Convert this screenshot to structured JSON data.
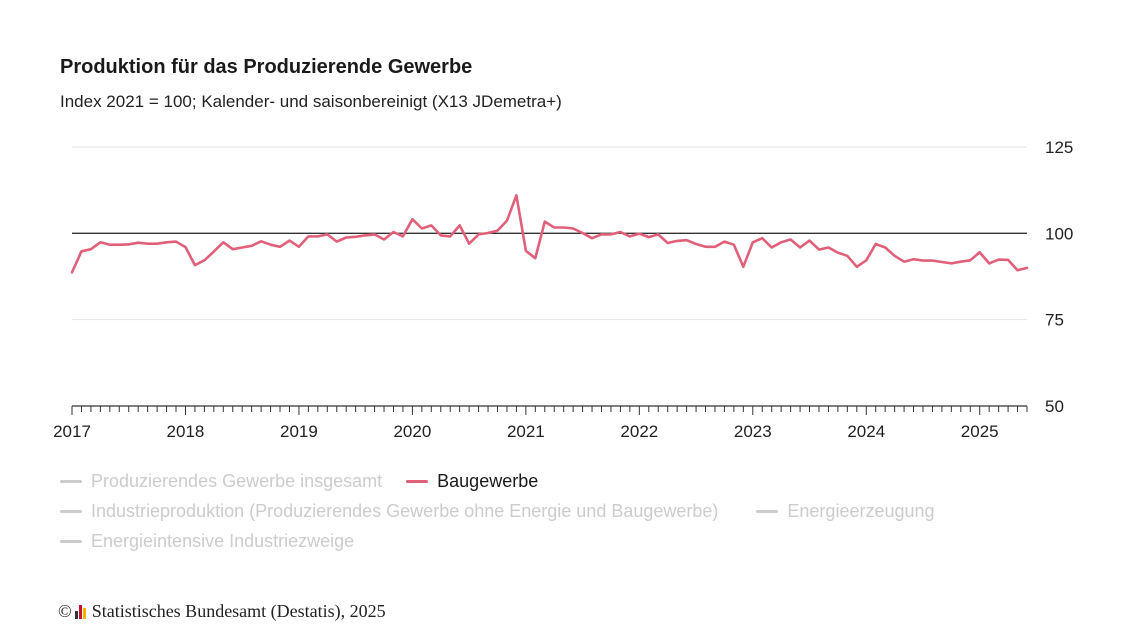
{
  "chart_data": {
    "type": "line",
    "title": "Produktion für das Produzierende Gewerbe",
    "subtitle": "Index 2021 = 100; Kalender- und saisonbereinigt (X13 JDemetra+)",
    "ylim": [
      50,
      125
    ],
    "y_ticks": [
      "125",
      "100",
      "75",
      "50"
    ],
    "y_tick_values": [
      125,
      100,
      75,
      50
    ],
    "reference_line": 100,
    "x_tick_labels": [
      "2017",
      "2018",
      "2019",
      "2020",
      "2021",
      "2022",
      "2023",
      "2024",
      "2025"
    ],
    "x_start": "2017-01",
    "x_end": "2025-06",
    "grid": "horizontal",
    "legend_position": "bottom",
    "series": [
      {
        "name": "Baugewerbe",
        "color": "#e0607a",
        "x": [
          "2017-01",
          "2017-02",
          "2017-03",
          "2017-04",
          "2017-05",
          "2017-06",
          "2017-07",
          "2017-08",
          "2017-09",
          "2017-10",
          "2017-11",
          "2017-12",
          "2018-01",
          "2018-02",
          "2018-03",
          "2018-04",
          "2018-05",
          "2018-06",
          "2018-07",
          "2018-08",
          "2018-09",
          "2018-10",
          "2018-11",
          "2018-12",
          "2019-01",
          "2019-02",
          "2019-03",
          "2019-04",
          "2019-05",
          "2019-06",
          "2019-07",
          "2019-08",
          "2019-09",
          "2019-10",
          "2019-11",
          "2019-12",
          "2020-01",
          "2020-02",
          "2020-03",
          "2020-04",
          "2020-05",
          "2020-06",
          "2020-07",
          "2020-08",
          "2020-09",
          "2020-10",
          "2020-11",
          "2020-12",
          "2021-01",
          "2021-02",
          "2021-03",
          "2021-04",
          "2021-05",
          "2021-06",
          "2021-07",
          "2021-08",
          "2021-09",
          "2021-10",
          "2021-11",
          "2021-12",
          "2022-01",
          "2022-02",
          "2022-03",
          "2022-04",
          "2022-05",
          "2022-06",
          "2022-07",
          "2022-08",
          "2022-09",
          "2022-10",
          "2022-11",
          "2022-12",
          "2023-01",
          "2023-02",
          "2023-03",
          "2023-04",
          "2023-05",
          "2023-06",
          "2023-07",
          "2023-08",
          "2023-09",
          "2023-10",
          "2023-11",
          "2023-12",
          "2024-01",
          "2024-02",
          "2024-03",
          "2024-04",
          "2024-05",
          "2024-06",
          "2024-07",
          "2024-08",
          "2024-09",
          "2024-10",
          "2024-11",
          "2024-12",
          "2025-01",
          "2025-02",
          "2025-03",
          "2025-04",
          "2025-05",
          "2025-06"
        ],
        "values": [
          88.7,
          94.8,
          95.4,
          97.4,
          96.7,
          96.7,
          96.8,
          97.3,
          97.0,
          97.0,
          97.4,
          97.6,
          96.0,
          90.8,
          92.2,
          94.7,
          97.4,
          95.4,
          95.9,
          96.4,
          97.7,
          96.7,
          96.1,
          97.9,
          96.1,
          99.1,
          99.1,
          99.7,
          97.6,
          98.8,
          99.0,
          99.4,
          99.7,
          98.2,
          100.4,
          99.1,
          104.1,
          101.4,
          102.3,
          99.4,
          99.1,
          102.3,
          97.0,
          99.7,
          100.1,
          100.8,
          103.7,
          111.0,
          94.9,
          92.8,
          103.4,
          101.7,
          101.7,
          101.4,
          100.1,
          98.6,
          99.7,
          99.7,
          100.4,
          99.1,
          99.9,
          98.9,
          99.7,
          97.2,
          97.8,
          98.0,
          96.9,
          96.1,
          96.1,
          97.6,
          96.7,
          90.3,
          97.4,
          98.6,
          95.9,
          97.4,
          98.2,
          95.9,
          97.9,
          95.3,
          95.9,
          94.4,
          93.5,
          90.3,
          92.2,
          96.9,
          95.9,
          93.5,
          91.8,
          92.5,
          92.1,
          92.1,
          91.7,
          91.3,
          91.8,
          92.2,
          94.5,
          91.3,
          92.4,
          92.3,
          89.3,
          90.0
        ]
      }
    ]
  },
  "legend": {
    "rows": [
      [
        {
          "label": "Produzierendes Gewerbe insgesamt",
          "active": false
        },
        {
          "label": "Baugewerbe",
          "active": true
        }
      ],
      [
        {
          "label": "Industrieproduktion (Produzierendes Gewerbe ohne Energie und Baugewerbe)",
          "active": false
        },
        {
          "label": "Energieerzeugung",
          "active": false
        }
      ],
      [
        {
          "label": "Energieintensive Industriezweige",
          "active": false
        }
      ]
    ]
  },
  "source": {
    "copyright": "©",
    "text": "Statistisches Bundesamt (Destatis), 2025"
  }
}
